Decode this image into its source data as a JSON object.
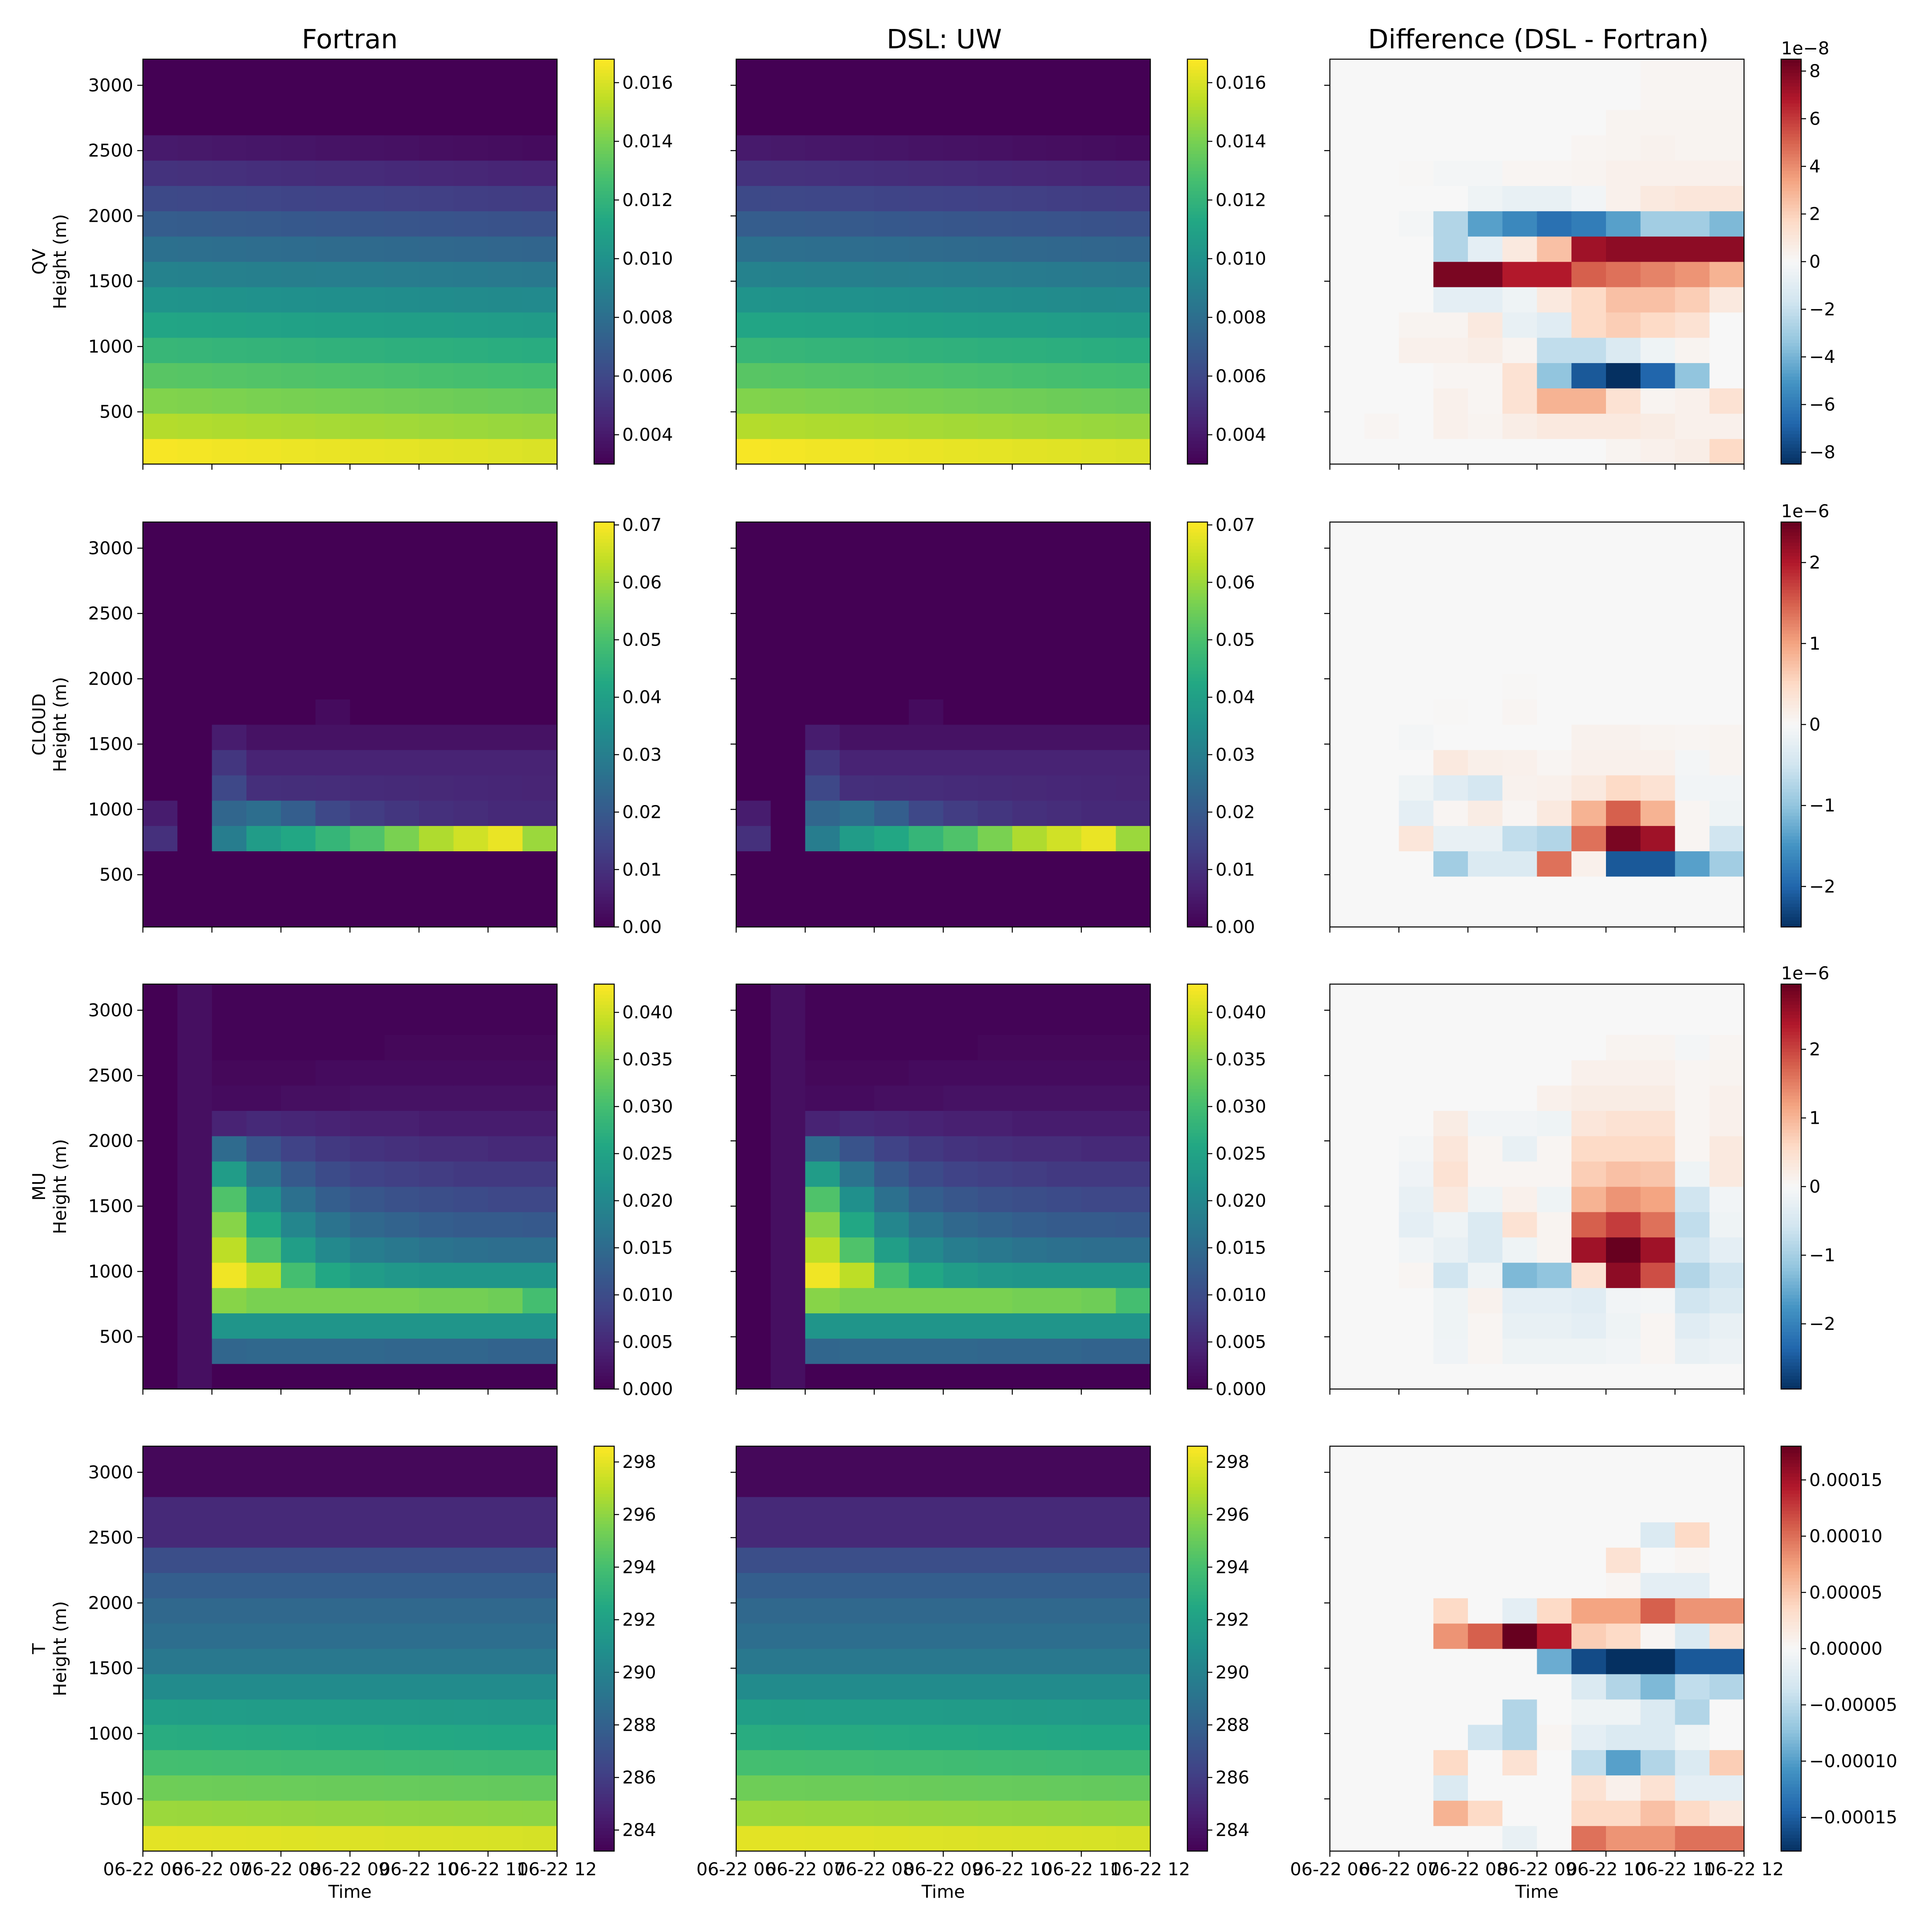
{
  "figure": {
    "column_titles": [
      "Fortran",
      "DSL: UW",
      "Difference (DSL - Fortran)"
    ],
    "x_label": "Time",
    "y_label": "Height (m)",
    "x_tick_labels": [
      "06-22 06",
      "06-22 07",
      "06-22 08",
      "06-22 09",
      "06-22 10",
      "06-22 11",
      "06-22 12"
    ]
  },
  "chart_data": [
    {
      "type": "heatmap",
      "variable": "QV",
      "row_label": "QV",
      "yticks": [
        500,
        1000,
        1500,
        2000,
        2500,
        3000
      ],
      "ylim": [
        100,
        3200
      ],
      "value_colorbar": {
        "min": 0.003,
        "max": 0.0168,
        "ticks": [
          "0.004",
          "0.006",
          "0.008",
          "0.010",
          "0.012",
          "0.014",
          "0.016"
        ],
        "tick_values": [
          0.004,
          0.006,
          0.008,
          0.01,
          0.012,
          0.014,
          0.016
        ]
      },
      "diff_colorbar": {
        "min": -8.5,
        "max": 8.5,
        "ticks": [
          "8",
          "6",
          "4",
          "2",
          "0",
          "−2",
          "−4",
          "−6",
          "−8"
        ],
        "tick_values": [
          8,
          6,
          4,
          2,
          0,
          -2,
          -4,
          -6,
          -8
        ],
        "offset_label": "1e−8"
      }
    },
    {
      "type": "heatmap",
      "variable": "CLOUD",
      "row_label": "CLOUD",
      "yticks": [
        500,
        1000,
        1500,
        2000,
        2500,
        3000
      ],
      "ylim": [
        100,
        3200
      ],
      "value_colorbar": {
        "min": 0.0,
        "max": 0.0705,
        "ticks": [
          "0.00",
          "0.01",
          "0.02",
          "0.03",
          "0.04",
          "0.05",
          "0.06",
          "0.07"
        ],
        "tick_values": [
          0,
          0.01,
          0.02,
          0.03,
          0.04,
          0.05,
          0.06,
          0.07
        ]
      },
      "diff_colorbar": {
        "min": -2.5,
        "max": 2.5,
        "ticks": [
          "2",
          "1",
          "0",
          "−1",
          "−2"
        ],
        "tick_values": [
          2,
          1,
          0,
          -1,
          -2
        ],
        "offset_label": "1e−6"
      }
    },
    {
      "type": "heatmap",
      "variable": "MU",
      "row_label": "MU",
      "yticks": [
        500,
        1000,
        1500,
        2000,
        2500,
        3000
      ],
      "ylim": [
        100,
        3200
      ],
      "value_colorbar": {
        "min": 0.0,
        "max": 0.043,
        "ticks": [
          "0.000",
          "0.005",
          "0.010",
          "0.015",
          "0.020",
          "0.025",
          "0.030",
          "0.035",
          "0.040"
        ],
        "tick_values": [
          0,
          0.005,
          0.01,
          0.015,
          0.02,
          0.025,
          0.03,
          0.035,
          0.04
        ]
      },
      "diff_colorbar": {
        "min": -2.95,
        "max": 2.95,
        "ticks": [
          "2",
          "1",
          "0",
          "−1",
          "−2"
        ],
        "tick_values": [
          2,
          1,
          0,
          -1,
          -2
        ],
        "offset_label": "1e−6"
      }
    },
    {
      "type": "heatmap",
      "variable": "T",
      "row_label": "T",
      "yticks": [
        500,
        1000,
        1500,
        2000,
        2500,
        3000
      ],
      "ylim": [
        100,
        3200
      ],
      "value_colorbar": {
        "min": 283.2,
        "max": 298.6,
        "ticks": [
          "284",
          "286",
          "288",
          "290",
          "292",
          "294",
          "296",
          "298"
        ],
        "tick_values": [
          284,
          286,
          288,
          290,
          292,
          294,
          296,
          298
        ]
      },
      "diff_colorbar": {
        "min": -0.00018,
        "max": 0.00018,
        "ticks": [
          "0.00015",
          "0.00010",
          "0.00005",
          "0.00000",
          "−0.00005",
          "−0.00010",
          "−0.00015"
        ],
        "tick_values": [
          0.00015,
          0.0001,
          5e-05,
          0,
          -5e-05,
          -0.0001,
          -0.00015
        ],
        "offset_label": ""
      }
    }
  ]
}
